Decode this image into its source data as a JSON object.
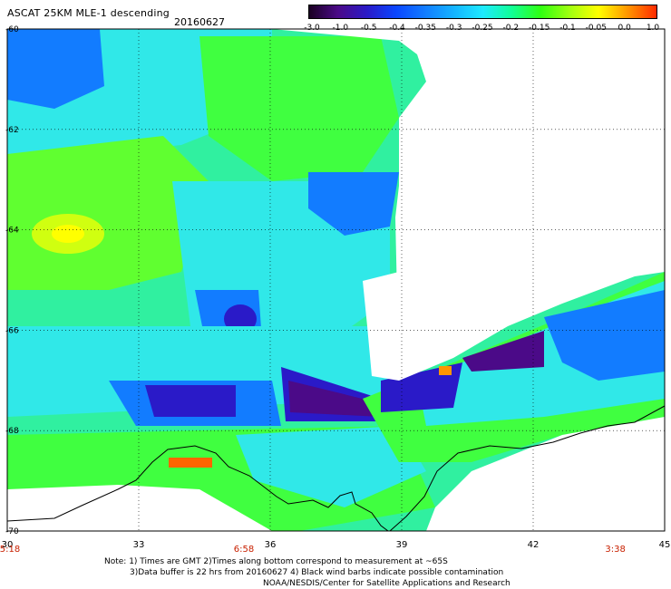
{
  "header": {
    "title": "ASCAT 25KM MLE-1 descending",
    "date": "20160627"
  },
  "colorbar": {
    "labels": [
      "-3.0",
      "-1.0",
      "-0.5",
      "-0.4",
      "-0.35",
      "-0.3",
      "-0.25",
      "-0.2",
      "-0.15",
      "-0.1",
      "-0.05",
      "0.0",
      "1.0"
    ],
    "colors": [
      "#1a0022",
      "#4b0a88",
      "#2a1ac8",
      "#0a46ff",
      "#127cff",
      "#14b4ff",
      "#1eeaff",
      "#10ff96",
      "#30ff10",
      "#a0ff10",
      "#ffff00",
      "#ff9600",
      "#ff2a00"
    ]
  },
  "map": {
    "lon_ticks": [
      "30",
      "33",
      "36",
      "39",
      "42",
      "45"
    ],
    "lat_ticks": [
      "-60",
      "-62",
      "-64",
      "-66",
      "-68",
      "-70"
    ],
    "time_labels": [
      "5:18",
      "6:58",
      "3:38"
    ],
    "time_label_color": "#c82000",
    "grid_color": "#000000",
    "coast_color": "#000000",
    "background": "#ffffff"
  },
  "footer": {
    "note_line1": "Note: 1) Times are GMT 2)Times along bottom correspond to measurement at ~65S",
    "note_line2": "3)Data buffer is 22 hrs from 20160627 4) Black wind barbs indicate possible contamination",
    "credit": "NOAA/NESDIS/Center for Satellite Applications and Research"
  }
}
